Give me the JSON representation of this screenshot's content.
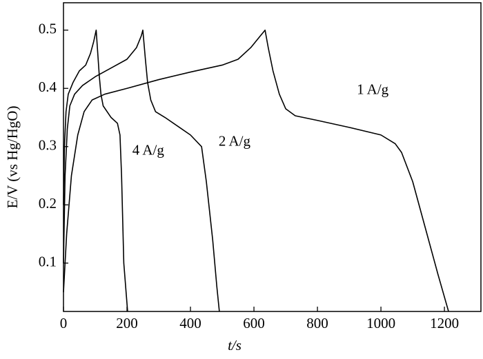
{
  "chart_data": {
    "type": "line",
    "xlabel": "t/s",
    "ylabel": "E/V (vs Hg/HgO)",
    "xlim": [
      0,
      1315
    ],
    "xticks": [
      0,
      200,
      400,
      600,
      800,
      1000,
      1200
    ],
    "ylim": [
      0.017,
      0.547
    ],
    "yticks": [
      0.1,
      0.2,
      0.3,
      0.4,
      0.5
    ],
    "color": "#000000",
    "series": [
      {
        "name": "4 A/g",
        "color": "#000000",
        "x": [
          0,
          3,
          8,
          15,
          30,
          50,
          70,
          85,
          95,
          103,
          108,
          113,
          118,
          125,
          150,
          170,
          178,
          183,
          190,
          202
        ],
        "values": [
          0.2,
          0.3,
          0.36,
          0.39,
          0.41,
          0.43,
          0.44,
          0.46,
          0.48,
          0.5,
          0.46,
          0.42,
          0.39,
          0.37,
          0.35,
          0.34,
          0.32,
          0.25,
          0.1,
          0.017
        ]
      },
      {
        "name": "2 A/g",
        "color": "#000000",
        "x": [
          0,
          5,
          12,
          20,
          35,
          60,
          100,
          150,
          200,
          230,
          245,
          250,
          258,
          265,
          275,
          290,
          320,
          360,
          400,
          435,
          450,
          470,
          483,
          491
        ],
        "values": [
          0.1,
          0.25,
          0.33,
          0.37,
          0.39,
          0.405,
          0.42,
          0.435,
          0.45,
          0.47,
          0.49,
          0.5,
          0.45,
          0.41,
          0.38,
          0.36,
          0.35,
          0.335,
          0.32,
          0.3,
          0.24,
          0.14,
          0.06,
          0.017
        ]
      },
      {
        "name": "1 A/g",
        "color": "#000000",
        "x": [
          0,
          10,
          25,
          45,
          65,
          90,
          130,
          200,
          300,
          400,
          500,
          550,
          590,
          620,
          635,
          645,
          660,
          680,
          700,
          730,
          800,
          900,
          1000,
          1045,
          1065,
          1100,
          1140,
          1180,
          1213
        ],
        "values": [
          0.05,
          0.15,
          0.25,
          0.32,
          0.36,
          0.38,
          0.39,
          0.4,
          0.415,
          0.428,
          0.44,
          0.45,
          0.47,
          0.49,
          0.5,
          0.47,
          0.43,
          0.39,
          0.365,
          0.353,
          0.345,
          0.333,
          0.32,
          0.305,
          0.29,
          0.24,
          0.16,
          0.08,
          0.017
        ]
      }
    ]
  }
}
